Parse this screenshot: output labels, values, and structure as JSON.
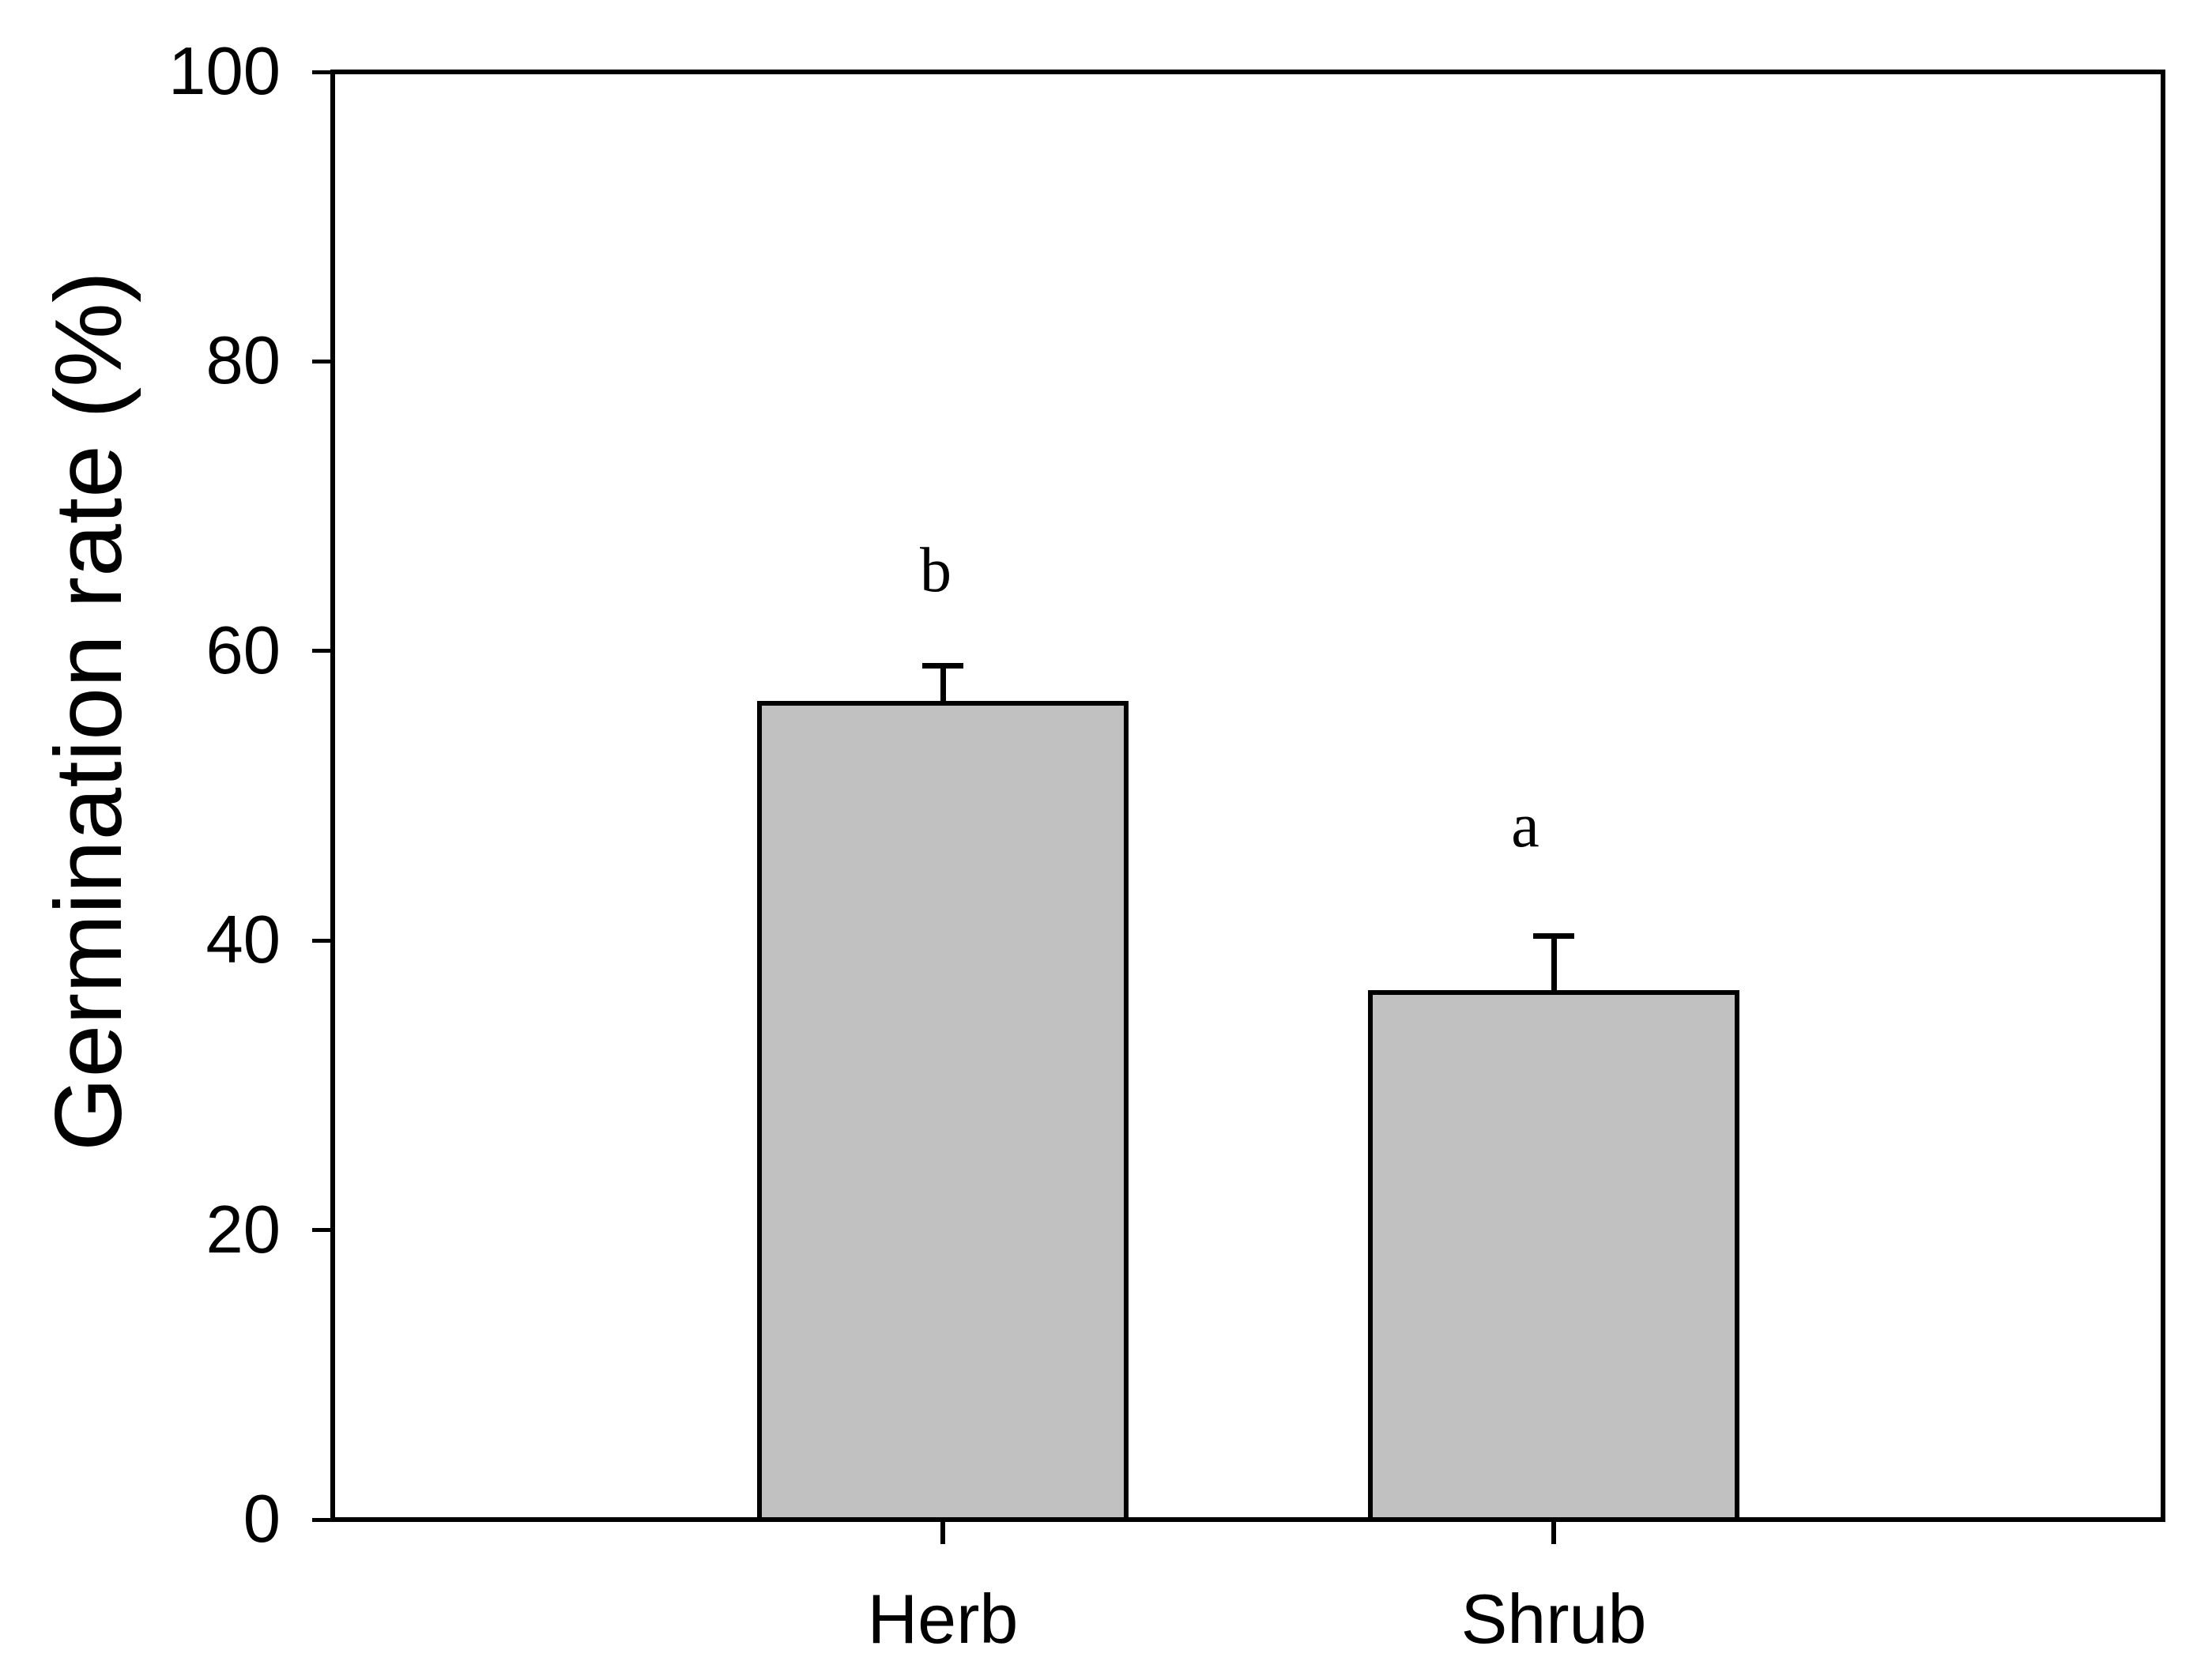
{
  "figure": {
    "background": "#ffffff"
  },
  "chart_data": {
    "type": "bar",
    "title": "",
    "xlabel": "",
    "ylabel": "Germination rate (%)",
    "categories": [
      "Herb",
      "Shrub"
    ],
    "values": [
      56.4,
      36.4
    ],
    "errors_plus": [
      2.6,
      3.9
    ],
    "significance_letters": [
      "b",
      "a"
    ],
    "yticks": [
      0,
      20,
      40,
      60,
      80,
      100
    ],
    "ylim": [
      0,
      100
    ],
    "grid": false,
    "legend": "none",
    "bar_fill": "#c1c1c1",
    "bar_edge": "#000000",
    "axis_color": "#000000",
    "text_color": "#000000"
  }
}
